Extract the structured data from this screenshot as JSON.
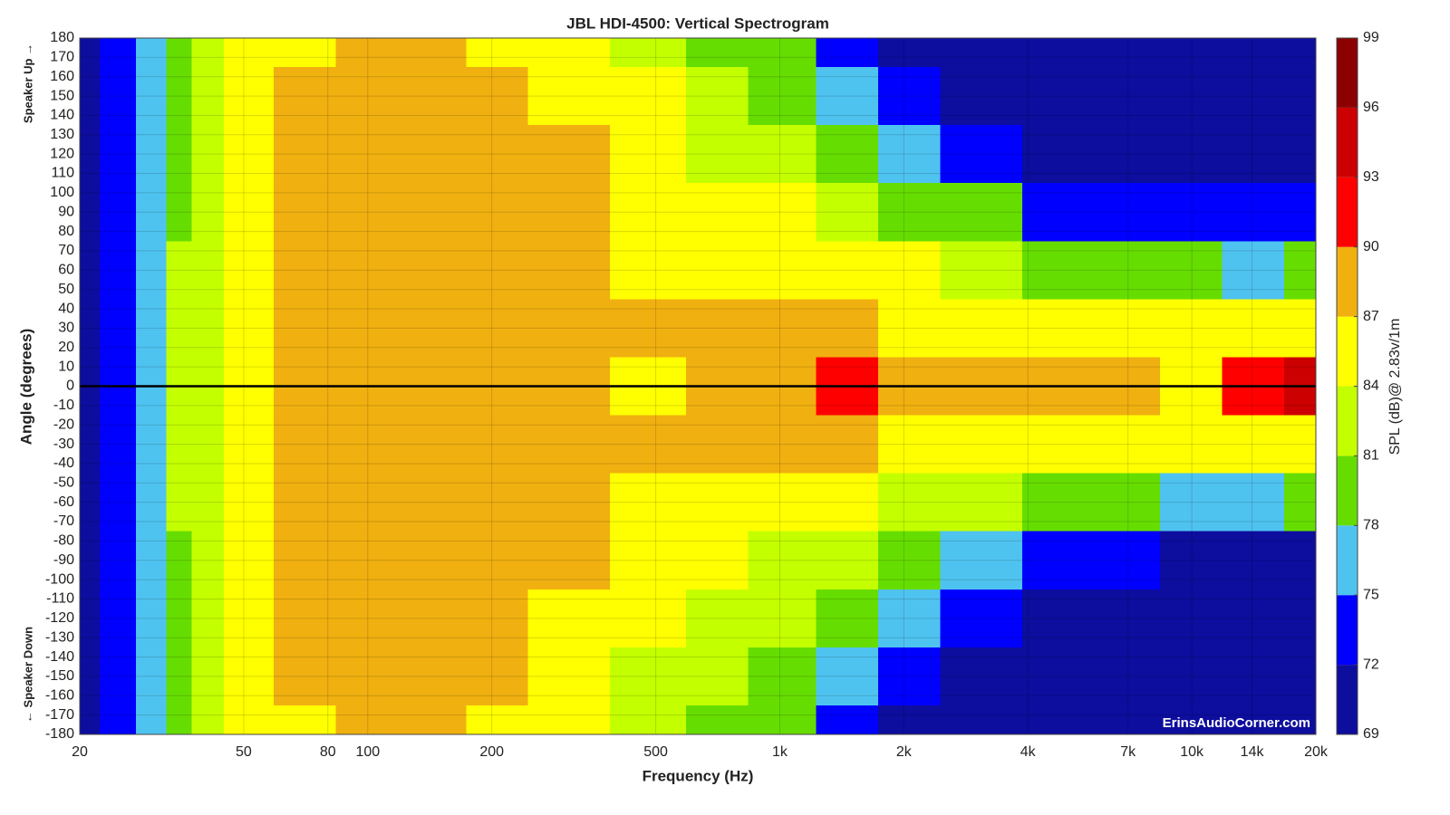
{
  "chart_data": {
    "type": "contour",
    "title": "JBL HDI-4500: Vertical Spectrogram",
    "x_label": "Frequency (Hz)",
    "y_label": "Angle (degrees)",
    "colorbar_label": "SPL (dB)@ 2.83v/1m",
    "annotations": [
      "Speaker Up →",
      "← Speaker Down"
    ],
    "watermark": "ErinsAudioCorner.com",
    "x_scale": "log",
    "xlim": [
      20,
      20000
    ],
    "xticks": [
      20,
      50,
      80,
      100,
      200,
      500,
      {
        "value": 1000,
        "label": "1k"
      },
      {
        "value": 2000,
        "label": "2k"
      },
      {
        "value": 4000,
        "label": "4k"
      },
      {
        "value": 7000,
        "label": "7k"
      },
      {
        "value": 10000,
        "label": "10k"
      },
      {
        "value": 14000,
        "label": "14k"
      },
      {
        "value": 20000,
        "label": "20k"
      }
    ],
    "ylim": [
      -180,
      180
    ],
    "yticks": [
      180,
      170,
      160,
      150,
      140,
      130,
      120,
      110,
      100,
      90,
      80,
      70,
      60,
      50,
      40,
      30,
      20,
      10,
      0,
      -10,
      -20,
      -30,
      -40,
      -50,
      -60,
      -70,
      -80,
      -90,
      -100,
      -110,
      -120,
      -130,
      -140,
      -150,
      -160,
      -170,
      -180
    ],
    "grid": true,
    "levels": [
      69,
      72,
      75,
      78,
      81,
      84,
      87,
      90,
      93,
      96,
      99
    ],
    "colors": [
      "#0d0d9e",
      "#0000ff",
      "#4fc3f0",
      "#66dd00",
      "#c4ff00",
      "#ffff00",
      "#f0b010",
      "#ff0000",
      "#cc0000",
      "#8b0000"
    ],
    "frequencies": [
      20,
      25,
      30,
      35,
      40,
      50,
      70,
      100,
      150,
      200,
      300,
      500,
      700,
      1000,
      1500,
      2000,
      3000,
      5000,
      7000,
      10000,
      14000,
      20000
    ],
    "angles": [
      180,
      150,
      120,
      90,
      60,
      30,
      0,
      -30,
      -60,
      -90,
      -120,
      -150,
      -180
    ],
    "z": [
      [
        70,
        72,
        75,
        79,
        82,
        85,
        86,
        87,
        88,
        86,
        85,
        83,
        80,
        79,
        73,
        71,
        70,
        70,
        70,
        70,
        70,
        70
      ],
      [
        70,
        72,
        76,
        80,
        82,
        85,
        87,
        88,
        88,
        87,
        86,
        84,
        81,
        79,
        75,
        72,
        70,
        70,
        70,
        70,
        70,
        70
      ],
      [
        70,
        73,
        77,
        80,
        83,
        86,
        87,
        88,
        88,
        88,
        87,
        85,
        82,
        81,
        78,
        76,
        74,
        70,
        70,
        70,
        70,
        70
      ],
      [
        70,
        73,
        77,
        80,
        83,
        86,
        88,
        88,
        88,
        88,
        88,
        86,
        84,
        84,
        82,
        80,
        78,
        74,
        73,
        72,
        73,
        74
      ],
      [
        70,
        73,
        77,
        81,
        83,
        86,
        88,
        88,
        88,
        88,
        88,
        86,
        85,
        86,
        86,
        84,
        83,
        80,
        79,
        78,
        77,
        79
      ],
      [
        70,
        73,
        77,
        81,
        83,
        86,
        88,
        88,
        88,
        88,
        88,
        87,
        88,
        88,
        88,
        86,
        86,
        85,
        85,
        85,
        84,
        85
      ],
      [
        70,
        73,
        77,
        81,
        83,
        86,
        88,
        88,
        88,
        88,
        88,
        86,
        88,
        89,
        90,
        89,
        88,
        88,
        88,
        86,
        91,
        95
      ],
      [
        70,
        73,
        77,
        81,
        83,
        86,
        88,
        88,
        88,
        88,
        88,
        87,
        88,
        88,
        87,
        86,
        86,
        85,
        84,
        84,
        84,
        85
      ],
      [
        70,
        73,
        77,
        81,
        83,
        86,
        88,
        88,
        88,
        88,
        88,
        86,
        85,
        85,
        85,
        83,
        82,
        79,
        78,
        77,
        76,
        78
      ],
      [
        70,
        73,
        77,
        80,
        83,
        86,
        88,
        88,
        88,
        88,
        87,
        85,
        84,
        83,
        81,
        79,
        77,
        72,
        72,
        71,
        70,
        70
      ],
      [
        70,
        73,
        77,
        80,
        83,
        86,
        87,
        88,
        88,
        88,
        86,
        84,
        82,
        81,
        78,
        75,
        73,
        70,
        70,
        70,
        70,
        70
      ],
      [
        70,
        72,
        76,
        80,
        82,
        85,
        87,
        88,
        88,
        87,
        86,
        83,
        81,
        79,
        75,
        72,
        70,
        70,
        70,
        70,
        70,
        70
      ],
      [
        70,
        72,
        75,
        79,
        82,
        85,
        86,
        87,
        88,
        86,
        85,
        83,
        80,
        79,
        73,
        71,
        70,
        70,
        70,
        70,
        70,
        70
      ]
    ]
  }
}
